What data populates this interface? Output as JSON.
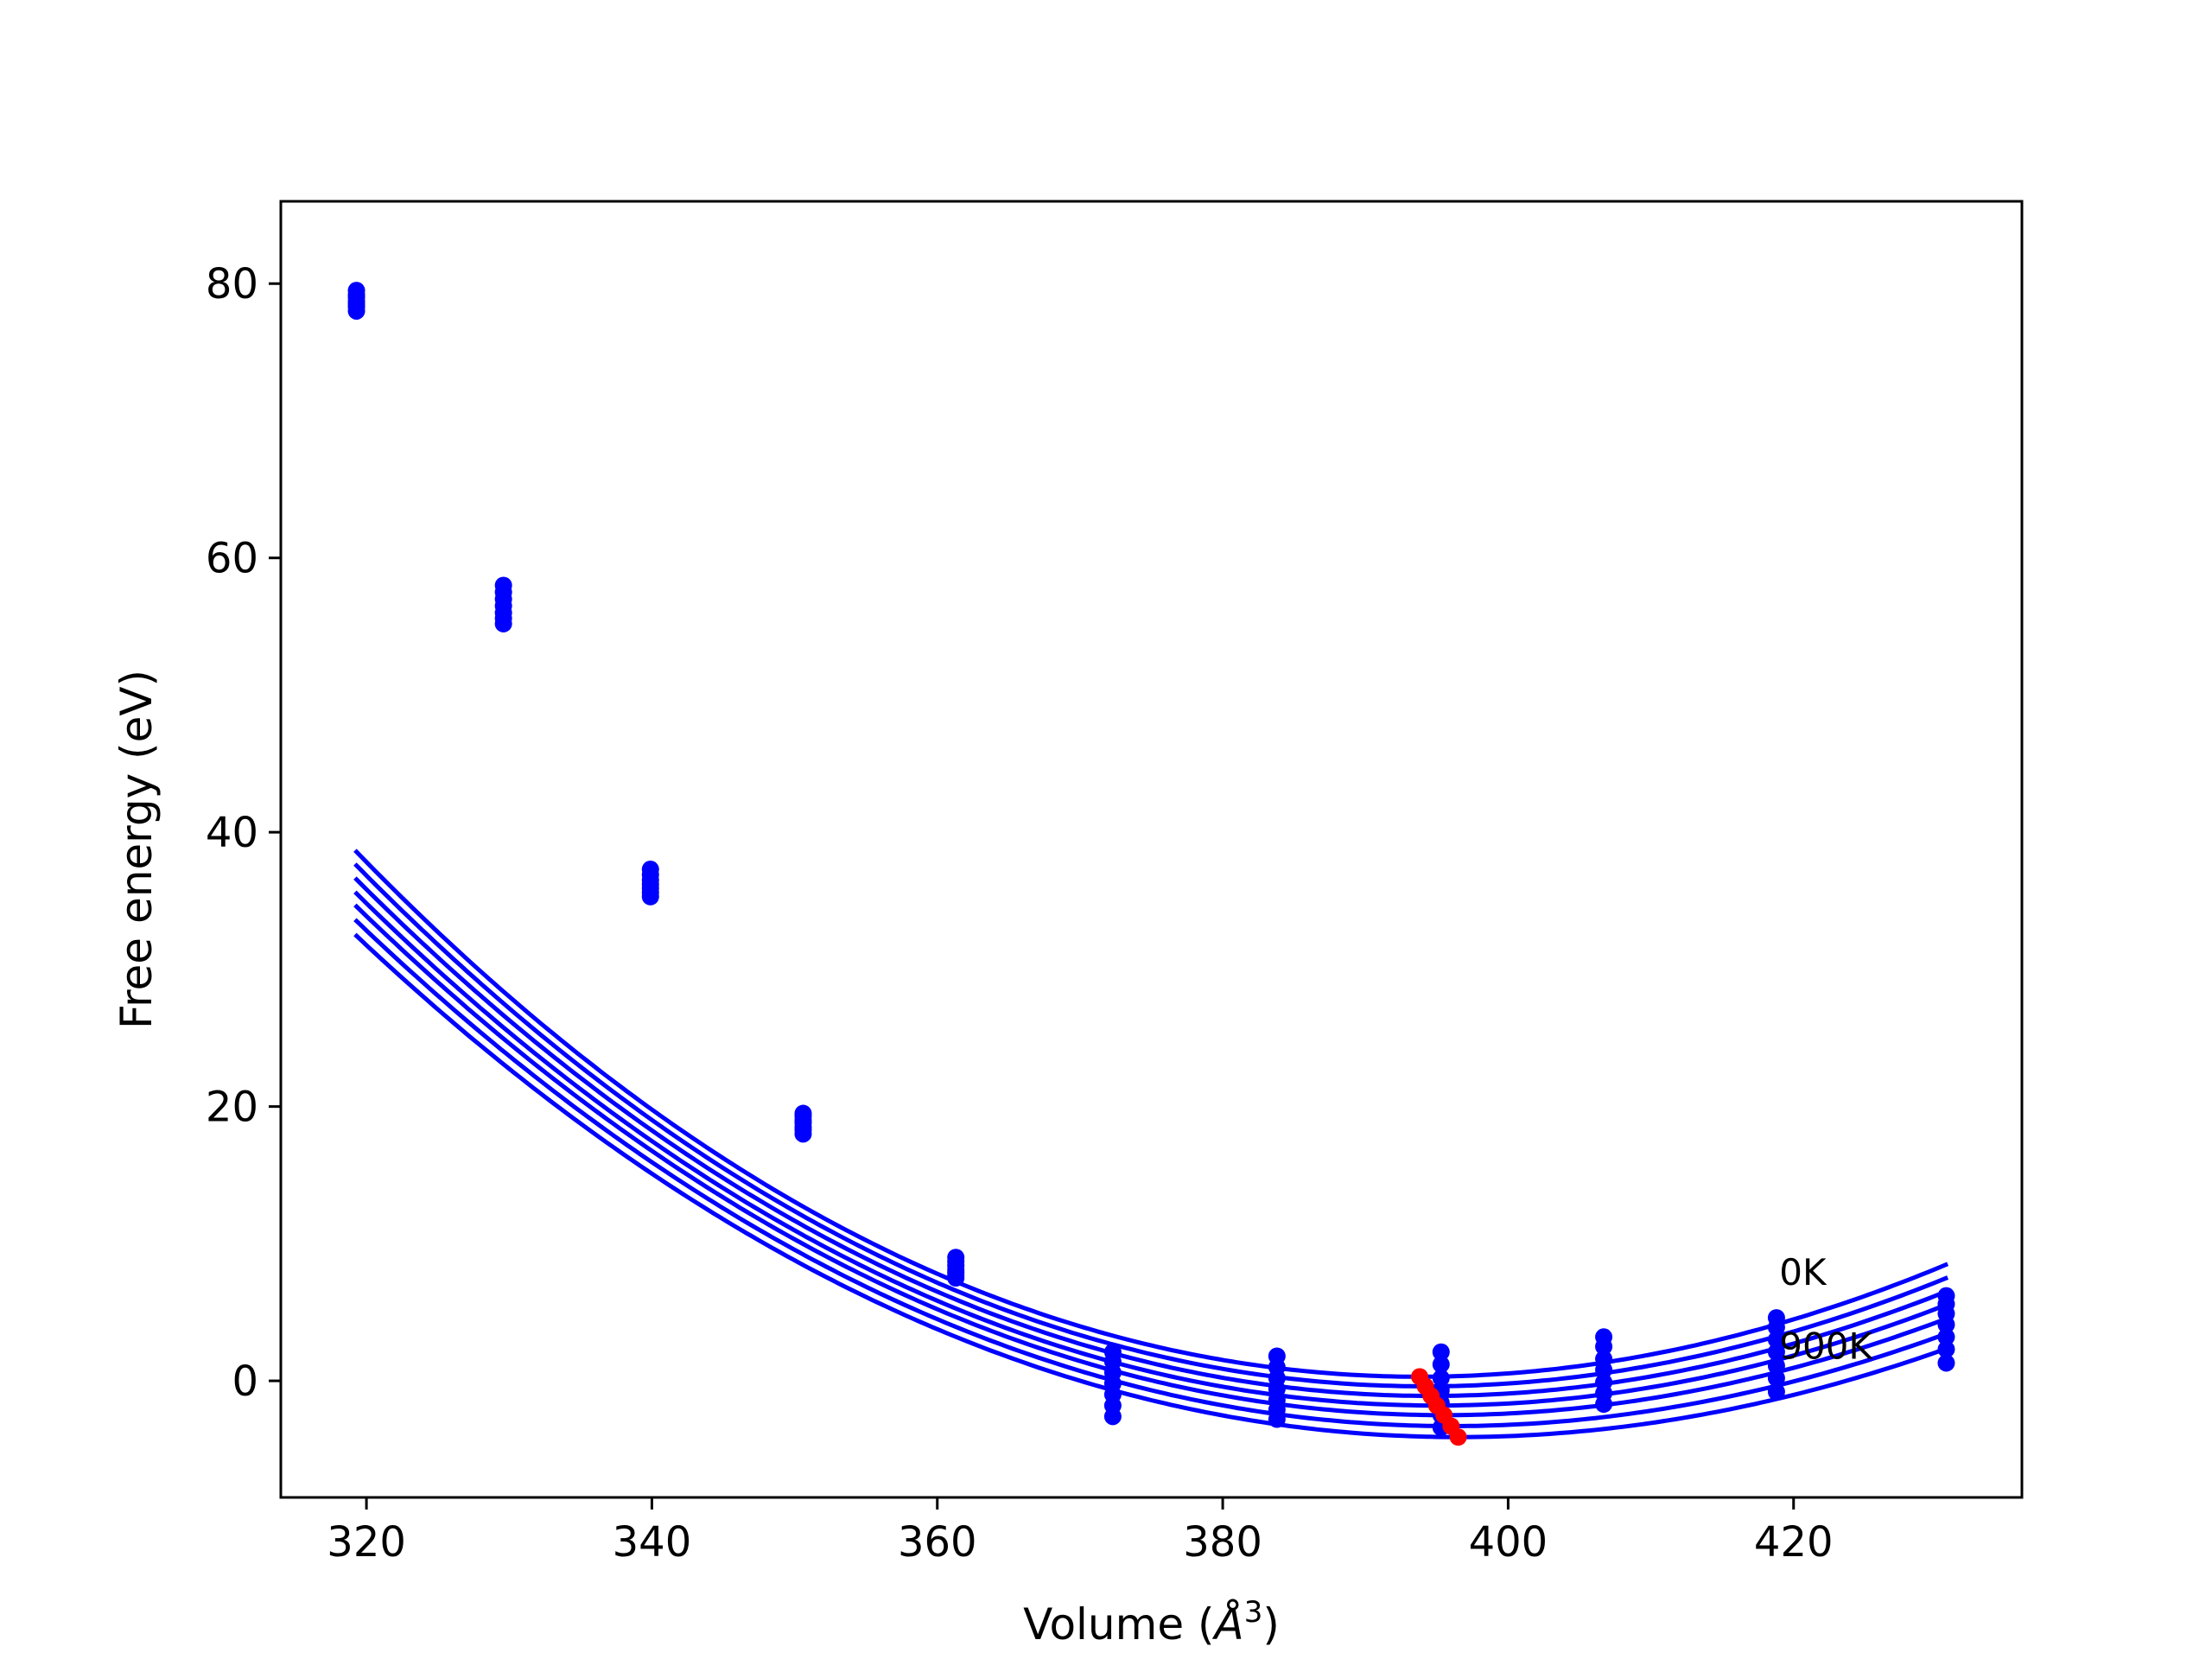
{
  "chart_data": {
    "type": "line",
    "title": "",
    "xlabel_prefix": "Volume (",
    "xlabel_unit": "Å",
    "xlabel_exp": "3",
    "xlabel_suffix": ")",
    "ylabel": "Free energy (eV)",
    "xlim": [
      314,
      436
    ],
    "ylim": [
      -8.5,
      86
    ],
    "xticks": [
      320,
      340,
      360,
      380,
      400,
      420
    ],
    "yticks": [
      0,
      20,
      40,
      60,
      80
    ],
    "grid": false,
    "line_color": "#0000ff",
    "min_color": "#ff0000",
    "x": [
      319.3,
      329.6,
      339.9,
      350.6,
      361.3,
      372.3,
      383.8,
      395.3,
      406.7,
      418.8,
      430.7
    ],
    "series": [
      {
        "name": "0K",
        "values": [
          79.5,
          58.0,
          37.3,
          19.5,
          9.0,
          2.1,
          1.8,
          2.1,
          3.2,
          4.6,
          6.2
        ]
      },
      {
        "values": [
          79.2,
          57.5,
          36.9,
          19.3,
          8.7,
          1.4,
          1.0,
          1.2,
          2.5,
          3.9,
          5.6
        ]
      },
      {
        "values": [
          79.0,
          57.0,
          36.5,
          19.0,
          8.4,
          0.6,
          0.2,
          0.2,
          1.6,
          3.0,
          4.9
        ]
      },
      {
        "values": [
          78.7,
          56.5,
          36.2,
          18.8,
          8.1,
          -0.2,
          -0.6,
          -0.7,
          0.8,
          2.1,
          4.1
        ]
      },
      {
        "values": [
          78.5,
          56.0,
          35.9,
          18.5,
          7.9,
          -1.0,
          -1.4,
          -1.6,
          -0.1,
          1.1,
          3.2
        ]
      },
      {
        "values": [
          78.3,
          55.6,
          35.6,
          18.3,
          7.7,
          -1.8,
          -2.1,
          -2.5,
          -0.9,
          0.2,
          2.3
        ]
      },
      {
        "name": "900K",
        "values": [
          78.0,
          55.2,
          35.3,
          18.0,
          7.5,
          -2.6,
          -2.8,
          -3.4,
          -1.7,
          -0.8,
          1.3
        ]
      }
    ],
    "fit_curves": [
      {
        "V0": 393.8,
        "E0": 0.3,
        "a": 0.0063,
        "b": 8e-06
      },
      {
        "V0": 394.2,
        "E0": -0.4,
        "a": 0.0062,
        "b": 7.6e-06
      },
      {
        "V0": 394.6,
        "E0": -1.1,
        "a": 0.0061,
        "b": 7.2e-06
      },
      {
        "V0": 395.0,
        "E0": -1.8,
        "a": 0.006,
        "b": 6.8e-06
      },
      {
        "V0": 395.5,
        "E0": -2.5,
        "a": 0.0059,
        "b": 6.4e-06
      },
      {
        "V0": 396.0,
        "E0": -3.3,
        "a": 0.0058,
        "b": 6e-06
      },
      {
        "V0": 396.5,
        "E0": -4.1,
        "a": 0.0057,
        "b": 5.6e-06
      }
    ],
    "fit_x_range": [
      319.2,
      430.8
    ],
    "minima": {
      "x": [
        393.8,
        394.2,
        394.6,
        395.0,
        395.5,
        396.0,
        396.5
      ],
      "y": [
        0.3,
        -0.4,
        -1.1,
        -1.8,
        -2.5,
        -3.3,
        -4.1
      ]
    },
    "annotations": [
      {
        "text": "0K",
        "x": 419.0,
        "y": 7.0
      },
      {
        "text": "900K",
        "x": 419.0,
        "y": 1.6
      }
    ]
  }
}
